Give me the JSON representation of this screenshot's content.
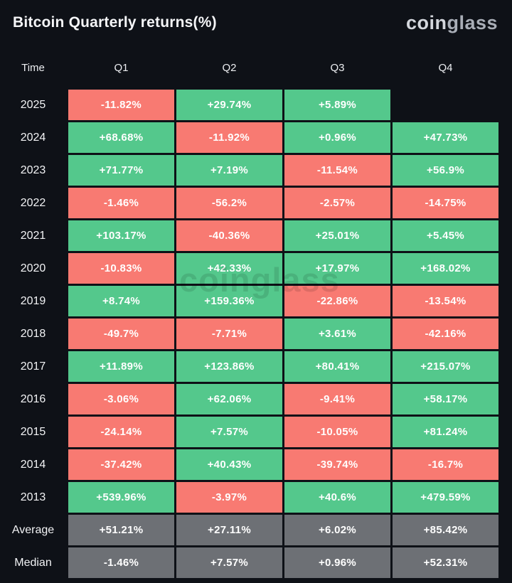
{
  "header": {
    "title": "Bitcoin Quarterly returns(%)",
    "logo": {
      "coin": "coin",
      "glass": "glass"
    }
  },
  "watermark": "coinglass",
  "colors": {
    "positive": "#54c88c",
    "negative": "#f87a72",
    "neutral": "#6d7075",
    "background": "#0e1117",
    "text": "#ffffff"
  },
  "table": {
    "columns": [
      "Time",
      "Q1",
      "Q2",
      "Q3",
      "Q4"
    ],
    "rows": [
      {
        "time": "2025",
        "cells": [
          {
            "value": "-11.82%",
            "tone": "negative"
          },
          {
            "value": "+29.74%",
            "tone": "positive"
          },
          {
            "value": "+5.89%",
            "tone": "positive"
          },
          {
            "value": "",
            "tone": "empty"
          }
        ]
      },
      {
        "time": "2024",
        "cells": [
          {
            "value": "+68.68%",
            "tone": "positive"
          },
          {
            "value": "-11.92%",
            "tone": "negative"
          },
          {
            "value": "+0.96%",
            "tone": "positive"
          },
          {
            "value": "+47.73%",
            "tone": "positive"
          }
        ]
      },
      {
        "time": "2023",
        "cells": [
          {
            "value": "+71.77%",
            "tone": "positive"
          },
          {
            "value": "+7.19%",
            "tone": "positive"
          },
          {
            "value": "-11.54%",
            "tone": "negative"
          },
          {
            "value": "+56.9%",
            "tone": "positive"
          }
        ]
      },
      {
        "time": "2022",
        "cells": [
          {
            "value": "-1.46%",
            "tone": "negative"
          },
          {
            "value": "-56.2%",
            "tone": "negative"
          },
          {
            "value": "-2.57%",
            "tone": "negative"
          },
          {
            "value": "-14.75%",
            "tone": "negative"
          }
        ]
      },
      {
        "time": "2021",
        "cells": [
          {
            "value": "+103.17%",
            "tone": "positive"
          },
          {
            "value": "-40.36%",
            "tone": "negative"
          },
          {
            "value": "+25.01%",
            "tone": "positive"
          },
          {
            "value": "+5.45%",
            "tone": "positive"
          }
        ]
      },
      {
        "time": "2020",
        "cells": [
          {
            "value": "-10.83%",
            "tone": "negative"
          },
          {
            "value": "+42.33%",
            "tone": "positive"
          },
          {
            "value": "+17.97%",
            "tone": "positive"
          },
          {
            "value": "+168.02%",
            "tone": "positive"
          }
        ]
      },
      {
        "time": "2019",
        "cells": [
          {
            "value": "+8.74%",
            "tone": "positive"
          },
          {
            "value": "+159.36%",
            "tone": "positive"
          },
          {
            "value": "-22.86%",
            "tone": "negative"
          },
          {
            "value": "-13.54%",
            "tone": "negative"
          }
        ]
      },
      {
        "time": "2018",
        "cells": [
          {
            "value": "-49.7%",
            "tone": "negative"
          },
          {
            "value": "-7.71%",
            "tone": "negative"
          },
          {
            "value": "+3.61%",
            "tone": "positive"
          },
          {
            "value": "-42.16%",
            "tone": "negative"
          }
        ]
      },
      {
        "time": "2017",
        "cells": [
          {
            "value": "+11.89%",
            "tone": "positive"
          },
          {
            "value": "+123.86%",
            "tone": "positive"
          },
          {
            "value": "+80.41%",
            "tone": "positive"
          },
          {
            "value": "+215.07%",
            "tone": "positive"
          }
        ]
      },
      {
        "time": "2016",
        "cells": [
          {
            "value": "-3.06%",
            "tone": "negative"
          },
          {
            "value": "+62.06%",
            "tone": "positive"
          },
          {
            "value": "-9.41%",
            "tone": "negative"
          },
          {
            "value": "+58.17%",
            "tone": "positive"
          }
        ]
      },
      {
        "time": "2015",
        "cells": [
          {
            "value": "-24.14%",
            "tone": "negative"
          },
          {
            "value": "+7.57%",
            "tone": "positive"
          },
          {
            "value": "-10.05%",
            "tone": "negative"
          },
          {
            "value": "+81.24%",
            "tone": "positive"
          }
        ]
      },
      {
        "time": "2014",
        "cells": [
          {
            "value": "-37.42%",
            "tone": "negative"
          },
          {
            "value": "+40.43%",
            "tone": "positive"
          },
          {
            "value": "-39.74%",
            "tone": "negative"
          },
          {
            "value": "-16.7%",
            "tone": "negative"
          }
        ]
      },
      {
        "time": "2013",
        "cells": [
          {
            "value": "+539.96%",
            "tone": "positive"
          },
          {
            "value": "-3.97%",
            "tone": "negative"
          },
          {
            "value": "+40.6%",
            "tone": "positive"
          },
          {
            "value": "+479.59%",
            "tone": "positive"
          }
        ]
      },
      {
        "time": "Average",
        "cells": [
          {
            "value": "+51.21%",
            "tone": "neutral"
          },
          {
            "value": "+27.11%",
            "tone": "neutral"
          },
          {
            "value": "+6.02%",
            "tone": "neutral"
          },
          {
            "value": "+85.42%",
            "tone": "neutral"
          }
        ]
      },
      {
        "time": "Median",
        "cells": [
          {
            "value": "-1.46%",
            "tone": "neutral"
          },
          {
            "value": "+7.57%",
            "tone": "neutral"
          },
          {
            "value": "+0.96%",
            "tone": "neutral"
          },
          {
            "value": "+52.31%",
            "tone": "neutral"
          }
        ]
      }
    ]
  },
  "chart_data": {
    "type": "table",
    "title": "Bitcoin Quarterly returns(%)",
    "columns": [
      "Time",
      "Q1",
      "Q2",
      "Q3",
      "Q4"
    ],
    "unit": "percent",
    "rows": [
      {
        "time": "2025",
        "values": [
          -11.82,
          29.74,
          5.89,
          null
        ]
      },
      {
        "time": "2024",
        "values": [
          68.68,
          -11.92,
          0.96,
          47.73
        ]
      },
      {
        "time": "2023",
        "values": [
          71.77,
          7.19,
          -11.54,
          56.9
        ]
      },
      {
        "time": "2022",
        "values": [
          -1.46,
          -56.2,
          -2.57,
          -14.75
        ]
      },
      {
        "time": "2021",
        "values": [
          103.17,
          -40.36,
          25.01,
          5.45
        ]
      },
      {
        "time": "2020",
        "values": [
          -10.83,
          42.33,
          17.97,
          168.02
        ]
      },
      {
        "time": "2019",
        "values": [
          8.74,
          159.36,
          -22.86,
          -13.54
        ]
      },
      {
        "time": "2018",
        "values": [
          -49.7,
          -7.71,
          3.61,
          -42.16
        ]
      },
      {
        "time": "2017",
        "values": [
          11.89,
          123.86,
          80.41,
          215.07
        ]
      },
      {
        "time": "2016",
        "values": [
          -3.06,
          62.06,
          -9.41,
          58.17
        ]
      },
      {
        "time": "2015",
        "values": [
          -24.14,
          7.57,
          -10.05,
          81.24
        ]
      },
      {
        "time": "2014",
        "values": [
          -37.42,
          40.43,
          -39.74,
          -16.7
        ]
      },
      {
        "time": "2013",
        "values": [
          539.96,
          -3.97,
          40.6,
          479.59
        ]
      },
      {
        "time": "Average",
        "values": [
          51.21,
          27.11,
          6.02,
          85.42
        ]
      },
      {
        "time": "Median",
        "values": [
          -1.46,
          7.57,
          0.96,
          52.31
        ]
      }
    ],
    "color_coding": {
      "positive": "green",
      "negative": "red",
      "summary_rows": "gray"
    }
  }
}
